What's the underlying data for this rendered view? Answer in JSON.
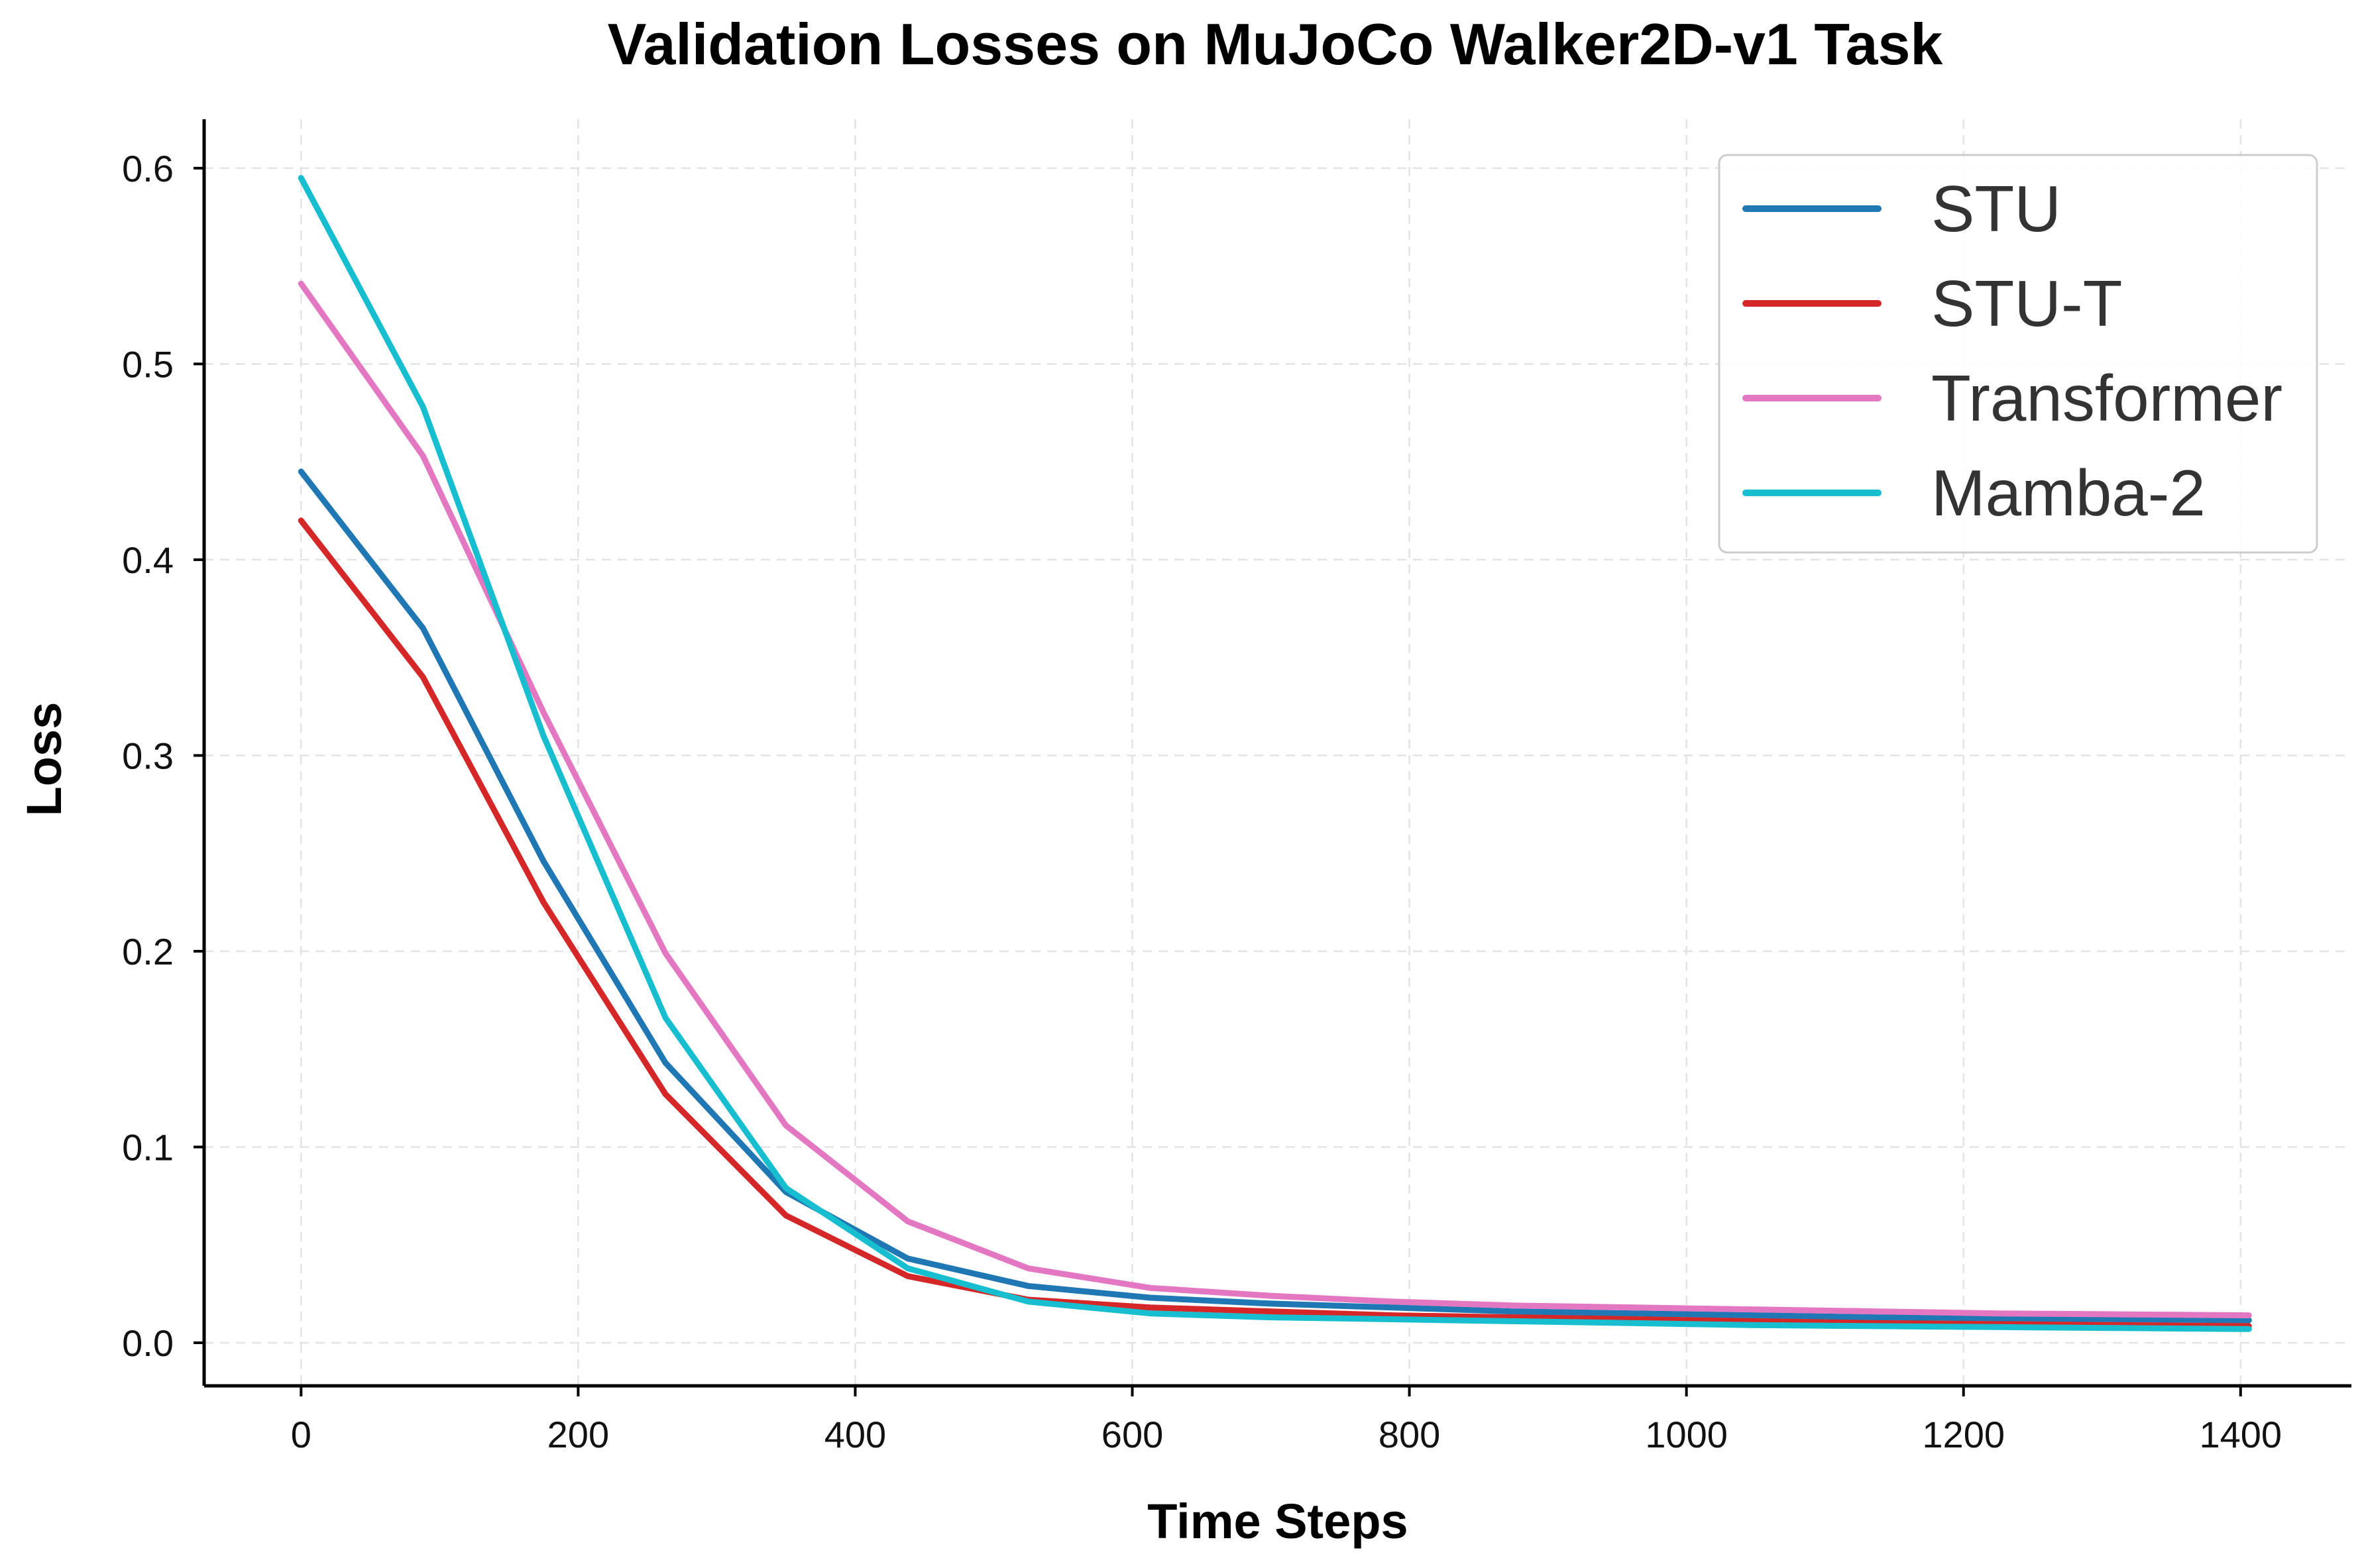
{
  "chart_data": {
    "type": "line",
    "title": "Validation Losses on MuJoCo Walker2D-v1 Task",
    "xlabel": "Time Steps",
    "ylabel": "Loss",
    "xlim": [
      -70,
      1480
    ],
    "ylim": [
      -0.022,
      0.625
    ],
    "xticks": [
      0,
      200,
      400,
      600,
      800,
      1000,
      1200,
      1400
    ],
    "yticks": [
      0.0,
      0.1,
      0.2,
      0.3,
      0.4,
      0.5,
      0.6
    ],
    "xtick_labels": [
      "0",
      "200",
      "400",
      "600",
      "800",
      "1000",
      "1200",
      "1400"
    ],
    "ytick_labels": [
      "0.0",
      "0.1",
      "0.2",
      "0.3",
      "0.4",
      "0.5",
      "0.6"
    ],
    "grid": true,
    "legend_position": "top-right",
    "x": [
      0,
      88,
      175,
      263,
      350,
      438,
      525,
      613,
      700,
      788,
      875,
      963,
      1050,
      1138,
      1225,
      1313,
      1406
    ],
    "series": [
      {
        "name": "STU",
        "color": "#1f77b4",
        "values": [
          0.445,
          0.365,
          0.246,
          0.143,
          0.077,
          0.043,
          0.029,
          0.023,
          0.02,
          0.018,
          0.016,
          0.015,
          0.014,
          0.013,
          0.0125,
          0.012,
          0.0115
        ]
      },
      {
        "name": "STU-T",
        "color": "#d62728",
        "values": [
          0.42,
          0.34,
          0.225,
          0.127,
          0.065,
          0.034,
          0.022,
          0.018,
          0.016,
          0.014,
          0.013,
          0.012,
          0.011,
          0.01,
          0.0095,
          0.009,
          0.0085
        ]
      },
      {
        "name": "Transformer",
        "color": "#e377c2",
        "values": [
          0.541,
          0.453,
          0.322,
          0.199,
          0.111,
          0.062,
          0.038,
          0.028,
          0.024,
          0.021,
          0.019,
          0.018,
          0.017,
          0.016,
          0.015,
          0.0145,
          0.014
        ]
      },
      {
        "name": "Mamba-2",
        "color": "#17becf",
        "values": [
          0.595,
          0.478,
          0.31,
          0.166,
          0.079,
          0.038,
          0.021,
          0.015,
          0.013,
          0.012,
          0.011,
          0.01,
          0.009,
          0.0085,
          0.008,
          0.0075,
          0.007
        ]
      }
    ]
  }
}
